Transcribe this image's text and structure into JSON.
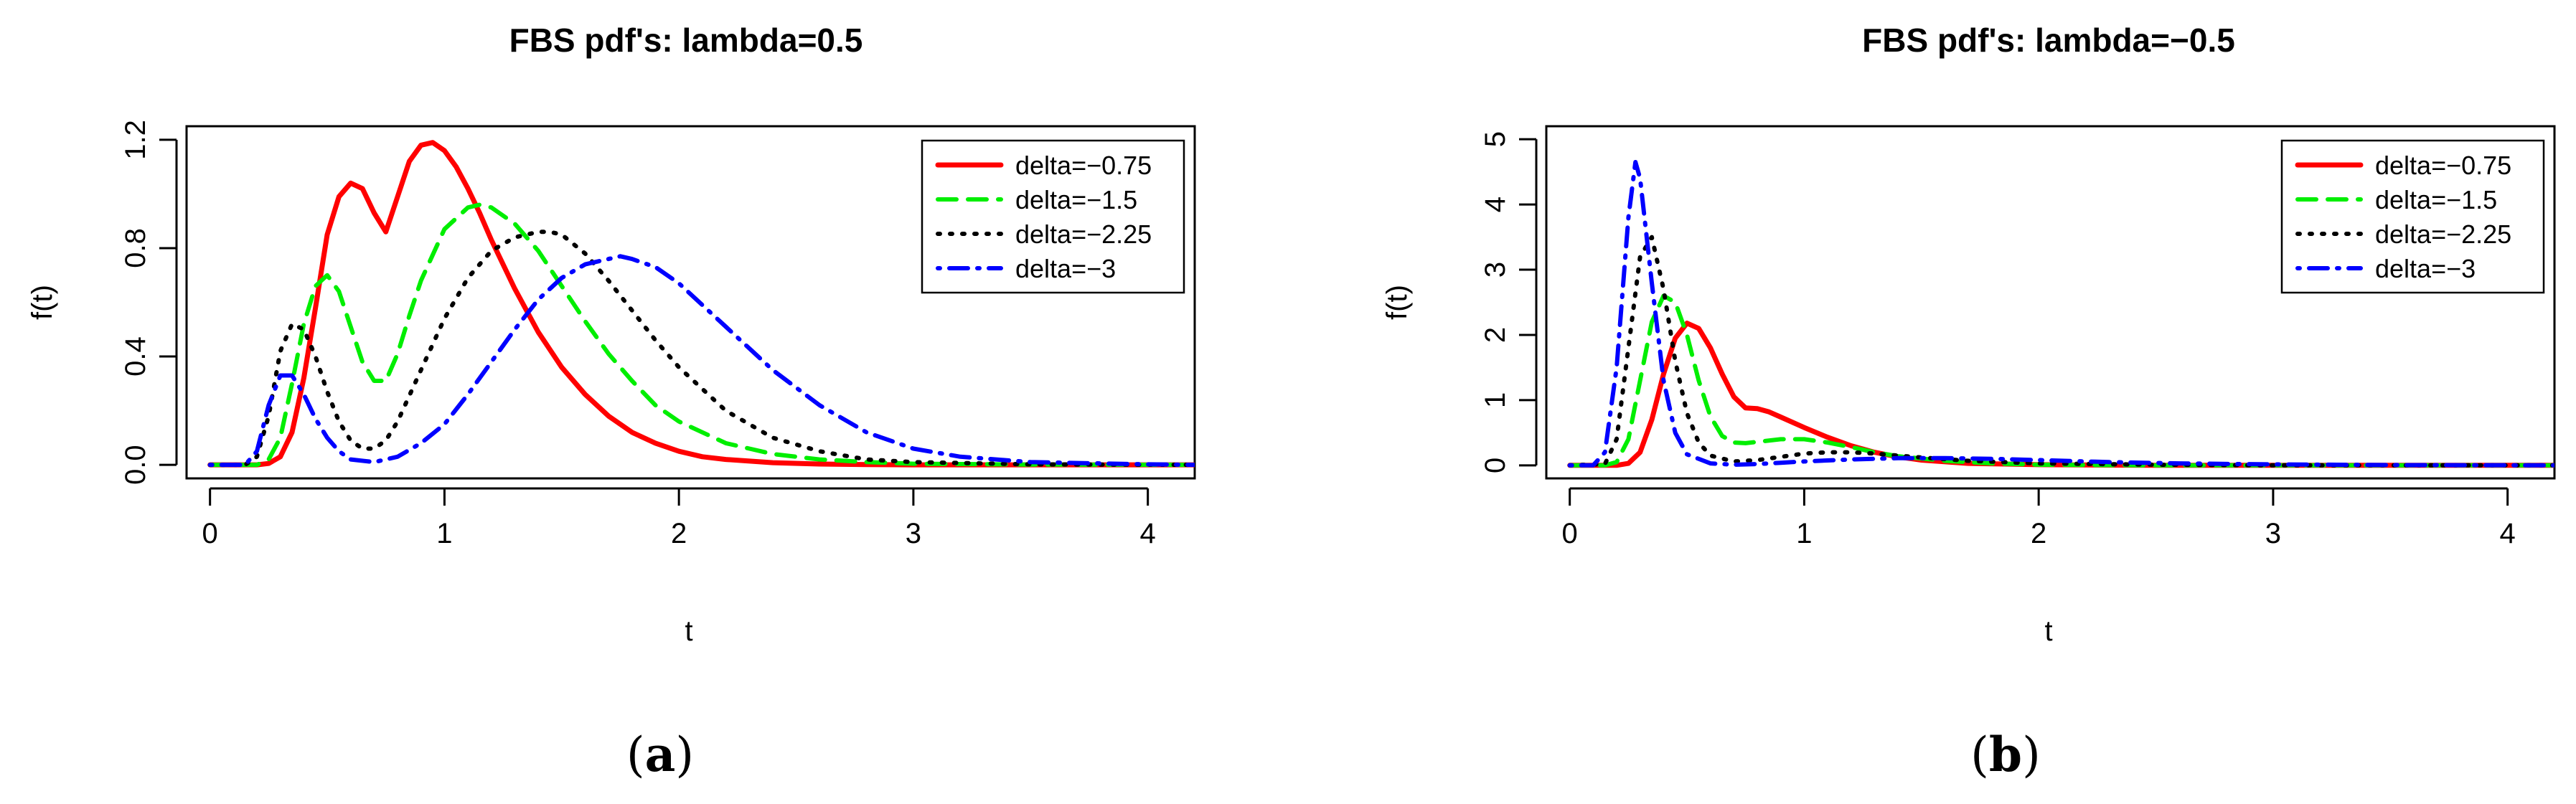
{
  "figure": {
    "captions": [
      {
        "open": "(",
        "letter": "a",
        "close": ")"
      },
      {
        "open": "(",
        "letter": "b",
        "close": ")"
      }
    ]
  },
  "chart_data": [
    {
      "type": "line",
      "title": "FBS pdf's: lambda=0.5",
      "xlabel": "t",
      "ylabel": "f(t)",
      "xlim": [
        -0.1,
        4.2
      ],
      "ylim": [
        -0.05,
        1.25
      ],
      "xticks": [
        0,
        1,
        2,
        3,
        4
      ],
      "xtick_labels": [
        "0",
        "1",
        "2",
        "3",
        "4"
      ],
      "yticks": [
        0,
        0.4,
        0.8,
        1.2
      ],
      "ytick_labels": [
        "0.0",
        "0.4",
        "0.8",
        "1.2"
      ],
      "legend_position": "top-right",
      "grid": false,
      "series": [
        {
          "name": "delta=−0.75",
          "color": "#ff0000",
          "dash": "solid",
          "x": [
            0,
            0.2,
            0.25,
            0.3,
            0.35,
            0.4,
            0.45,
            0.5,
            0.55,
            0.6,
            0.65,
            0.7,
            0.75,
            0.8,
            0.85,
            0.9,
            0.95,
            1.0,
            1.05,
            1.1,
            1.15,
            1.2,
            1.3,
            1.4,
            1.5,
            1.6,
            1.7,
            1.8,
            1.9,
            2.0,
            2.1,
            2.2,
            2.4,
            2.6,
            2.8,
            3.0,
            3.5,
            4.2
          ],
          "y": [
            0,
            0,
            0.005,
            0.03,
            0.12,
            0.32,
            0.58,
            0.85,
            0.99,
            1.04,
            1.02,
            0.93,
            0.86,
            0.99,
            1.12,
            1.18,
            1.19,
            1.16,
            1.1,
            1.02,
            0.93,
            0.83,
            0.65,
            0.49,
            0.36,
            0.26,
            0.18,
            0.12,
            0.08,
            0.05,
            0.03,
            0.02,
            0.008,
            0.003,
            0.001,
            0,
            0,
            0
          ]
        },
        {
          "name": "delta=−1.5",
          "color": "#00ee00",
          "dash": "dashed",
          "x": [
            0,
            0.2,
            0.25,
            0.3,
            0.35,
            0.4,
            0.45,
            0.5,
            0.55,
            0.6,
            0.65,
            0.7,
            0.75,
            0.8,
            0.85,
            0.9,
            1.0,
            1.1,
            1.15,
            1.2,
            1.3,
            1.4,
            1.5,
            1.6,
            1.7,
            1.8,
            1.9,
            2.0,
            2.2,
            2.4,
            2.6,
            2.8,
            3.0,
            3.5,
            4.2
          ],
          "y": [
            0,
            0,
            0.02,
            0.1,
            0.3,
            0.52,
            0.66,
            0.7,
            0.64,
            0.51,
            0.38,
            0.31,
            0.31,
            0.41,
            0.55,
            0.68,
            0.87,
            0.95,
            0.96,
            0.95,
            0.89,
            0.79,
            0.66,
            0.53,
            0.41,
            0.31,
            0.22,
            0.16,
            0.08,
            0.04,
            0.02,
            0.01,
            0.004,
            0.001,
            0
          ]
        },
        {
          "name": "delta=−2.25",
          "color": "#000000",
          "dash": "dotted",
          "x": [
            0,
            0.15,
            0.2,
            0.25,
            0.3,
            0.35,
            0.4,
            0.45,
            0.5,
            0.55,
            0.6,
            0.65,
            0.7,
            0.75,
            0.8,
            0.9,
            1.0,
            1.1,
            1.2,
            1.3,
            1.4,
            1.45,
            1.5,
            1.6,
            1.7,
            1.8,
            1.9,
            2.0,
            2.2,
            2.4,
            2.6,
            2.8,
            3.0,
            3.5,
            4.2
          ],
          "y": [
            0,
            0,
            0.03,
            0.18,
            0.42,
            0.52,
            0.5,
            0.4,
            0.27,
            0.16,
            0.09,
            0.06,
            0.06,
            0.09,
            0.16,
            0.35,
            0.54,
            0.69,
            0.79,
            0.84,
            0.86,
            0.86,
            0.85,
            0.78,
            0.68,
            0.57,
            0.46,
            0.36,
            0.2,
            0.1,
            0.05,
            0.02,
            0.01,
            0.002,
            0
          ]
        },
        {
          "name": "delta=−3",
          "color": "#0000ff",
          "dash": "dotdash",
          "x": [
            0,
            0.15,
            0.2,
            0.25,
            0.3,
            0.35,
            0.4,
            0.45,
            0.5,
            0.55,
            0.6,
            0.7,
            0.8,
            0.9,
            1.0,
            1.1,
            1.2,
            1.3,
            1.4,
            1.5,
            1.6,
            1.7,
            1.75,
            1.8,
            1.9,
            2.0,
            2.2,
            2.4,
            2.6,
            2.8,
            3.0,
            3.2,
            3.5,
            4.0,
            4.2
          ],
          "y": [
            0,
            0,
            0.05,
            0.22,
            0.33,
            0.33,
            0.26,
            0.17,
            0.1,
            0.05,
            0.02,
            0.01,
            0.03,
            0.08,
            0.15,
            0.26,
            0.38,
            0.5,
            0.61,
            0.69,
            0.74,
            0.76,
            0.77,
            0.76,
            0.73,
            0.67,
            0.51,
            0.35,
            0.22,
            0.12,
            0.06,
            0.03,
            0.01,
            0.002,
            0
          ]
        }
      ]
    },
    {
      "type": "line",
      "title": "FBS pdf's: lambda=−0.5",
      "xlabel": "t",
      "ylabel": "f(t)",
      "xlim": [
        -0.1,
        4.2
      ],
      "ylim": [
        -0.2,
        5.2
      ],
      "xticks": [
        0,
        1,
        2,
        3,
        4
      ],
      "xtick_labels": [
        "0",
        "1",
        "2",
        "3",
        "4"
      ],
      "yticks": [
        0,
        1,
        2,
        3,
        4,
        5
      ],
      "ytick_labels": [
        "0",
        "1",
        "2",
        "3",
        "4",
        "5"
      ],
      "legend_position": "top-right",
      "grid": false,
      "series": [
        {
          "name": "delta=−0.75",
          "color": "#ff0000",
          "dash": "solid",
          "x": [
            0,
            0.2,
            0.25,
            0.3,
            0.35,
            0.4,
            0.45,
            0.5,
            0.55,
            0.6,
            0.65,
            0.7,
            0.75,
            0.8,
            0.85,
            0.9,
            1.0,
            1.1,
            1.2,
            1.3,
            1.4,
            1.5,
            1.7,
            2.0,
            2.5,
            3.0,
            4.2
          ],
          "y": [
            0,
            0,
            0.03,
            0.2,
            0.7,
            1.4,
            1.95,
            2.18,
            2.1,
            1.8,
            1.4,
            1.05,
            0.88,
            0.87,
            0.82,
            0.74,
            0.58,
            0.43,
            0.3,
            0.2,
            0.13,
            0.08,
            0.03,
            0.01,
            0,
            0,
            0
          ]
        },
        {
          "name": "delta=−1.5",
          "color": "#00ee00",
          "dash": "dashed",
          "x": [
            0,
            0.15,
            0.2,
            0.25,
            0.3,
            0.35,
            0.4,
            0.45,
            0.5,
            0.55,
            0.6,
            0.65,
            0.7,
            0.75,
            0.8,
            0.9,
            1.0,
            1.1,
            1.2,
            1.3,
            1.4,
            1.6,
            1.8,
            2.0,
            2.5,
            3.0,
            4.2
          ],
          "y": [
            0,
            0,
            0.05,
            0.4,
            1.3,
            2.2,
            2.6,
            2.5,
            2.0,
            1.3,
            0.75,
            0.45,
            0.35,
            0.34,
            0.36,
            0.4,
            0.4,
            0.35,
            0.28,
            0.2,
            0.14,
            0.07,
            0.03,
            0.01,
            0,
            0,
            0
          ]
        },
        {
          "name": "delta=−2.25",
          "color": "#000000",
          "dash": "dotted",
          "x": [
            0,
            0.15,
            0.2,
            0.25,
            0.3,
            0.35,
            0.4,
            0.45,
            0.5,
            0.55,
            0.6,
            0.7,
            0.8,
            0.9,
            1.0,
            1.1,
            1.2,
            1.3,
            1.4,
            1.5,
            1.7,
            2.0,
            2.5,
            3.0,
            4.2
          ],
          "y": [
            0,
            0.02,
            0.4,
            1.8,
            3.2,
            3.5,
            2.7,
            1.6,
            0.8,
            0.35,
            0.15,
            0.06,
            0.08,
            0.13,
            0.18,
            0.2,
            0.2,
            0.18,
            0.15,
            0.12,
            0.07,
            0.03,
            0.01,
            0,
            0
          ]
        },
        {
          "name": "delta=−3",
          "color": "#0000ff",
          "dash": "dotdash",
          "x": [
            0,
            0.1,
            0.15,
            0.2,
            0.25,
            0.28,
            0.3,
            0.35,
            0.4,
            0.45,
            0.5,
            0.6,
            0.7,
            0.8,
            0.9,
            1.0,
            1.2,
            1.4,
            1.6,
            1.8,
            2.0,
            2.3,
            2.6,
            3.0,
            3.5,
            4.2
          ],
          "y": [
            0,
            0,
            0.2,
            1.5,
            3.8,
            4.65,
            4.4,
            2.8,
            1.3,
            0.5,
            0.17,
            0.03,
            0.01,
            0.02,
            0.04,
            0.06,
            0.09,
            0.11,
            0.11,
            0.1,
            0.08,
            0.05,
            0.03,
            0.015,
            0.005,
            0
          ]
        }
      ]
    }
  ]
}
